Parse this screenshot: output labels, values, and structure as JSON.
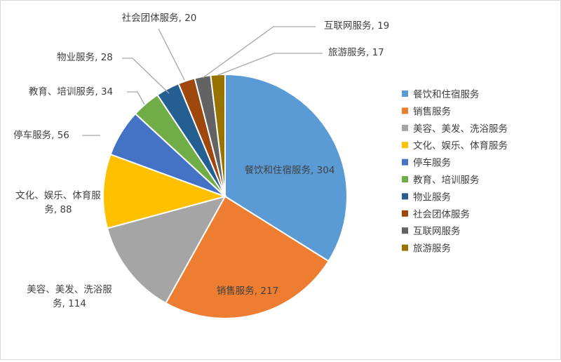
{
  "chart_data": {
    "type": "pie",
    "title": "",
    "legend_position": "right",
    "slices": [
      {
        "name": "餐饮和住宿服务",
        "value": 304,
        "color": "#5b9bd5",
        "label_line1": "餐饮和住宿服务, 304",
        "label_line2": ""
      },
      {
        "name": "销售服务",
        "value": 217,
        "color": "#ed7d31",
        "label_line1": "销售服务, 217",
        "label_line2": ""
      },
      {
        "name": "美容、美发、洗浴服务",
        "value": 114,
        "color": "#a5a5a5",
        "label_line1": "美容、美发、洗浴服",
        "label_line2": "务, 114"
      },
      {
        "name": "文化、娱乐、体育服务",
        "value": 88,
        "color": "#ffc000",
        "label_line1": "文化、娱乐、体育服",
        "label_line2": "务, 88"
      },
      {
        "name": "停车服务",
        "value": 56,
        "color": "#4472c4",
        "label_line1": "停车服务, 56",
        "label_line2": ""
      },
      {
        "name": "教育、培训服务",
        "value": 34,
        "color": "#70ad47",
        "label_line1": "教育、培训服务, 34",
        "label_line2": ""
      },
      {
        "name": "物业服务",
        "value": 28,
        "color": "#255e91",
        "label_line1": "物业服务, 28",
        "label_line2": ""
      },
      {
        "name": "社会团体服务",
        "value": 20,
        "color": "#9e480e",
        "label_line1": "社会团体服务, 20",
        "label_line2": ""
      },
      {
        "name": "互联网服务",
        "value": 19,
        "color": "#636363",
        "label_line1": "互联网服务, 19",
        "label_line2": ""
      },
      {
        "name": "旅游服务",
        "value": 17,
        "color": "#997300",
        "label_line1": "旅游服务, 17",
        "label_line2": ""
      }
    ]
  }
}
